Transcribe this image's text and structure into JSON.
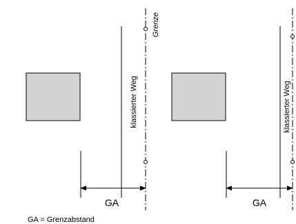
{
  "left": {
    "road_label": "klassierter Weg",
    "boundary_label": "Grenze",
    "dimension_label": "GA"
  },
  "right": {
    "road_label": "klassierter Weg",
    "dimension_label": "GA"
  },
  "legend": "GA = Grenzabstand",
  "colors": {
    "line": "#000000",
    "building_fill": "#d4d4d4",
    "background": "#ffffff"
  }
}
